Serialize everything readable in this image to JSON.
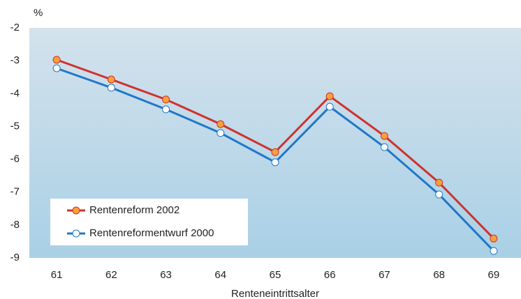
{
  "chart_data": {
    "type": "line",
    "y_label": "%",
    "x_label": "Renteneintrittsalter",
    "categories": [
      "61",
      "62",
      "63",
      "64",
      "65",
      "66",
      "67",
      "68",
      "69"
    ],
    "series": [
      {
        "name": "Rentenreform 2002",
        "color": "#d0312d",
        "marker_color": "#f5a03a",
        "values": [
          -2.97,
          -3.57,
          -4.18,
          -4.93,
          -5.78,
          -4.08,
          -5.29,
          -6.71,
          -8.41
        ]
      },
      {
        "name": "Rentenreformentwurf 2000",
        "color": "#1f78c8",
        "marker_color": "#ffffff",
        "values": [
          -3.23,
          -3.82,
          -4.48,
          -5.2,
          -6.09,
          -4.4,
          -5.63,
          -7.07,
          -8.79
        ]
      }
    ],
    "ylim": [
      -9,
      -2
    ],
    "yticks": [
      -2,
      -3,
      -4,
      -5,
      -6,
      -7,
      -8,
      -9
    ],
    "legend": "lower-left"
  }
}
